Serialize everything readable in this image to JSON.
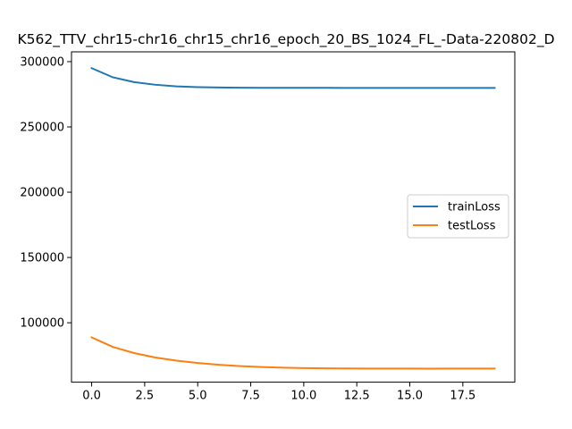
{
  "chart_data": {
    "type": "line",
    "title": "K562_TTV_chr15-chr16_chr15_chr16_epoch_20_BS_1024_FL_-Data-220802_D",
    "xlabel": "",
    "ylabel": "",
    "x": [
      0,
      1,
      2,
      3,
      4,
      5,
      6,
      7,
      8,
      9,
      10,
      11,
      12,
      13,
      14,
      15,
      16,
      17,
      18,
      19
    ],
    "xlim": [
      -0.95,
      19.95
    ],
    "ylim": [
      54500,
      307500
    ],
    "xticks": [
      0.0,
      2.5,
      5.0,
      7.5,
      10.0,
      12.5,
      15.0,
      17.5
    ],
    "xtick_labels": [
      "0.0",
      "2.5",
      "5.0",
      "7.5",
      "10.0",
      "12.5",
      "15.0",
      "17.5"
    ],
    "yticks": [
      100000,
      150000,
      200000,
      250000,
      300000
    ],
    "ytick_labels": [
      "100000",
      "150000",
      "200000",
      "250000",
      "300000"
    ],
    "grid": false,
    "legend_position": "center-right",
    "series": [
      {
        "name": "trainLoss",
        "color": "#1f77b4",
        "values": [
          295000,
          288000,
          284300,
          282300,
          281100,
          280500,
          280200,
          280050,
          279980,
          279940,
          279920,
          279910,
          279900,
          279900,
          279900,
          279900,
          279900,
          279900,
          279900,
          279850
        ]
      },
      {
        "name": "testLoss",
        "color": "#ff7f0e",
        "values": [
          88800,
          81500,
          76800,
          73400,
          71000,
          69200,
          67800,
          66800,
          66100,
          65600,
          65300,
          65100,
          65000,
          64950,
          64900,
          64900,
          64850,
          64900,
          64900,
          64900
        ]
      }
    ]
  }
}
